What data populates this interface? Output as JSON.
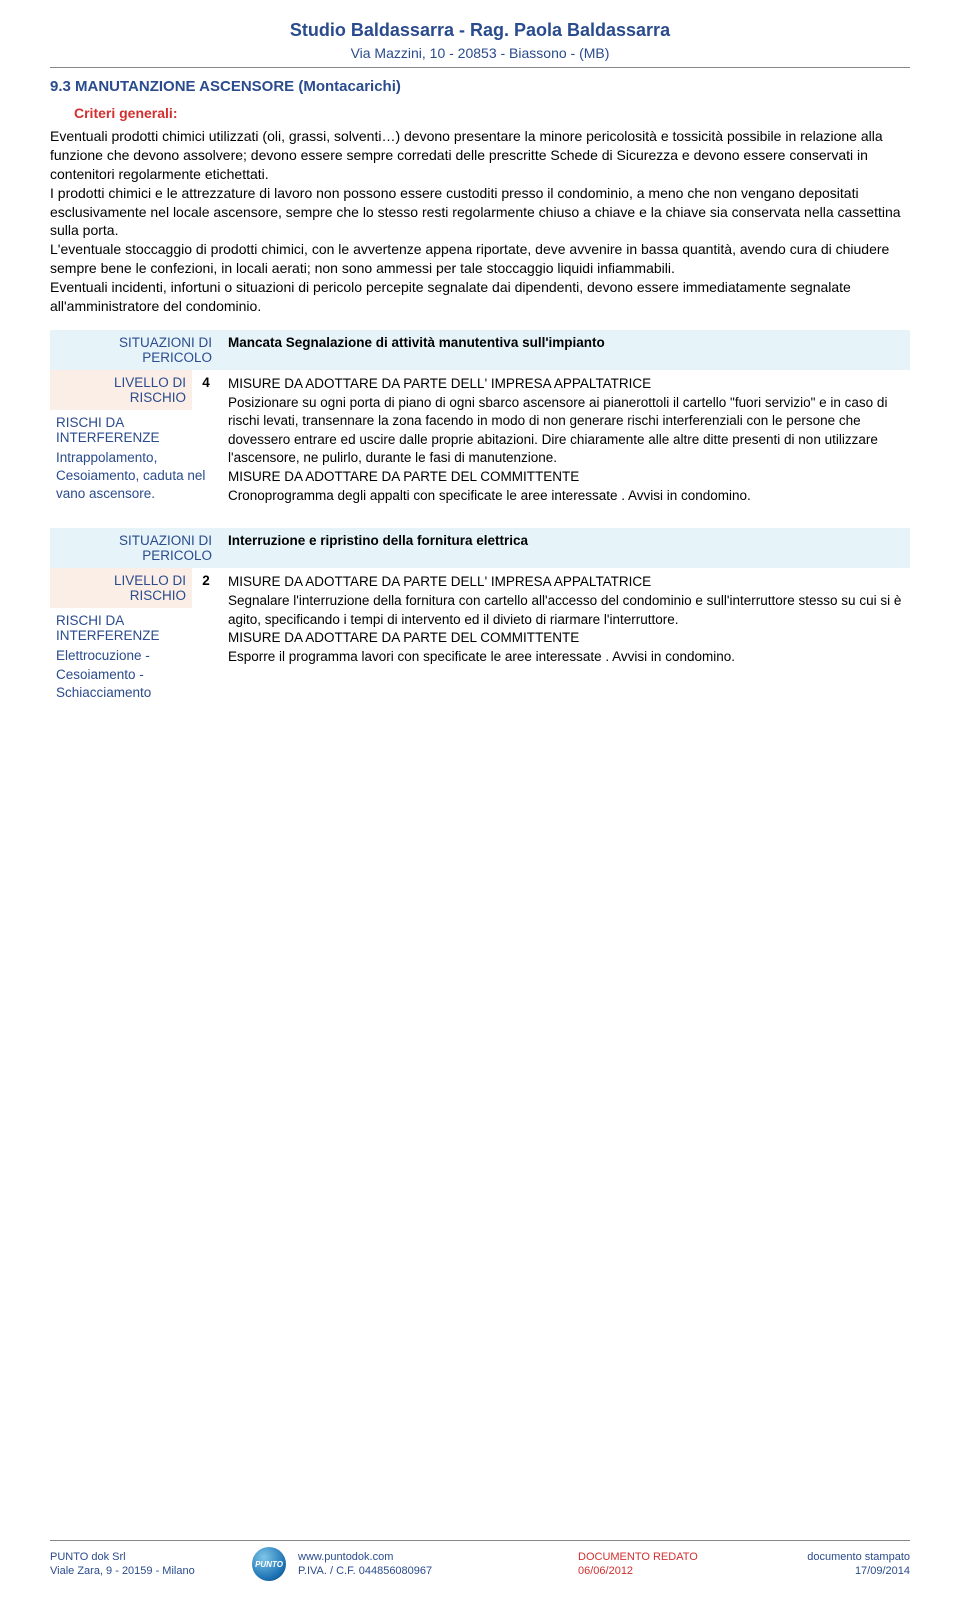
{
  "header": {
    "title": "Studio Baldassarra - Rag. Paola Baldassarra",
    "subtitle": "Via Mazzini, 10 - 20853 - Biassono - (MB)"
  },
  "section": {
    "heading": "9.3 MANUTANZIONE ASCENSORE (Montacarichi)",
    "criteria_label": "Criteri generali:",
    "body": "Eventuali prodotti chimici utilizzati (oli, grassi, solventi…) devono presentare la minore pericolosità e tossicità possibile in relazione alla funzione che devono assolvere; devono essere sempre corredati delle prescritte Schede di Sicurezza  e devono essere conservati in contenitori regolarmente etichettati.\nI prodotti chimici e le attrezzature di lavoro non possono essere custoditi presso il condominio, a meno che non vengano depositati esclusivamente nel locale ascensore, sempre che lo stesso resti regolarmente chiuso a chiave e la chiave sia conservata nella cassettina sulla porta.\nL'eventuale stoccaggio di prodotti chimici, con le avvertenze appena riportate, deve avvenire in bassa quantità, avendo cura di chiudere sempre bene le confezioni, in locali aerati; non sono ammessi per tale stoccaggio liquidi infiammabili.\nEventuali incidenti, infortuni o situazioni di pericolo percepite segnalate dai dipendenti, devono essere immediatamente segnalate all'amministratore del condominio."
  },
  "labels": {
    "situazioni": "SITUAZIONI DI PERICOLO",
    "livello": "LIVELLO DI RISCHIO",
    "rischi_da": "RISCHI DA INTERFERENZE"
  },
  "risk1": {
    "title": "Mancata Segnalazione di attività manutentiva sull'impianto",
    "level": "4",
    "interference": "Intrappolamento, Cesoiamento, caduta nel vano ascensore.",
    "measures": "MISURE DA ADOTTARE DA PARTE DELL' IMPRESA APPALTATRICE\nPosizionare su ogni porta di piano di ogni sbarco ascensore ai pianerottoli il cartello \"fuori servizio\" e in caso di rischi levati,  transennare la zona facendo in modo di non generare rischi interferenziali con le persone che dovessero entrare ed uscire dalle proprie abitazioni. Dire chiaramente alle altre ditte presenti di non utilizzare l'ascensore, ne pulirlo, durante le fasi di manutenzione.\nMISURE DA ADOTTARE DA PARTE DEL COMMITTENTE\nCronoprogramma degli appalti con specificate le aree interessate . Avvisi in condomino."
  },
  "risk2": {
    "title": "Interruzione e ripristino della fornitura elettrica",
    "level": "2",
    "interference": "Elettrocuzione - Cesoiamento - Schiacciamento",
    "measures": "MISURE DA ADOTTARE DA PARTE DELL' IMPRESA APPALTATRICE\nSegnalare l'interruzione della fornitura con cartello all'accesso del condominio e sull'interruttore stesso su cui si è agito, specificando i tempi di intervento ed il divieto di riarmare l'interruttore.\nMISURE DA ADOTTARE DA PARTE DEL COMMITTENTE\nEsporre il programma lavori con specificate le aree interessate . Avvisi in condomino."
  },
  "footer": {
    "company": "PUNTO dok Srl",
    "address": "Viale Zara, 9 - 20159 - Milano",
    "logo": "PUNTO",
    "web": "www.puntodok.com",
    "piva": "P.IVA. / C.F. 044856080967",
    "doc_label": "DOCUMENTO REDATO",
    "doc_date": "06/06/2012",
    "print_label": "documento stampato",
    "print_date": "17/09/2014"
  }
}
